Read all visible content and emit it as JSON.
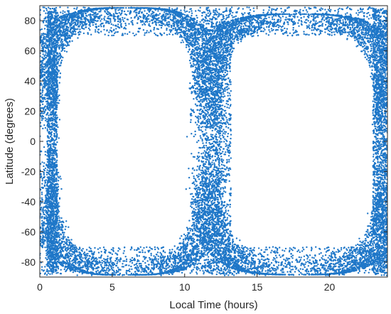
{
  "chart_data": {
    "type": "scatter",
    "title": "",
    "xlabel": "Local Time (hours)",
    "ylabel": "Latitude (degrees)",
    "xlim": [
      0,
      24
    ],
    "ylim": [
      -90,
      90
    ],
    "xticks": [
      0,
      5,
      10,
      15,
      20
    ],
    "yticks": [
      -80,
      -60,
      -40,
      -20,
      0,
      20,
      40,
      60,
      80
    ],
    "grid": false,
    "legend": "none",
    "marker_color": "#1f77c8",
    "description_shape": "two large oval rings of dense points",
    "series": [
      {
        "rings": [
          {
            "center_x": 6.0,
            "center_y": 0,
            "half_width": 5.0,
            "half_height": 82,
            "points_per_band": 1400
          },
          {
            "center_x": 17.8,
            "center_y": -2,
            "half_width": 5.6,
            "half_height": 80,
            "points_per_band": 1500
          }
        ]
      }
    ]
  }
}
